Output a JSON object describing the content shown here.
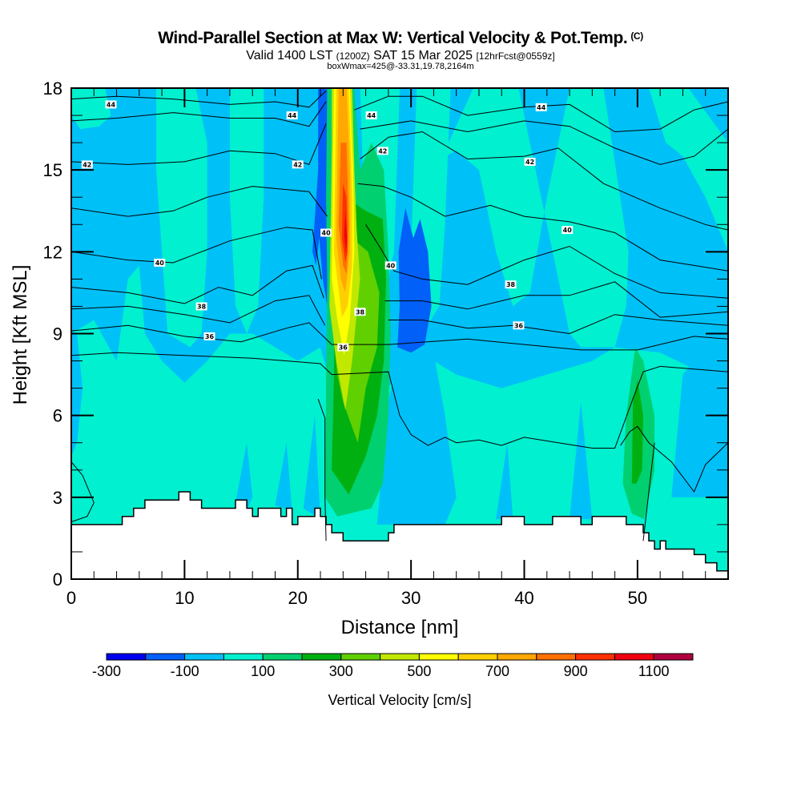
{
  "header": {
    "title": "Wind-Parallel Section at Max W: Vertical Velocity & Pot.Temp.",
    "copyright": "(C)",
    "valid_prefix": "Valid 1400 LST",
    "valid_utc": "(1200Z)",
    "valid_date": "SAT 15 Mar 2025",
    "forecast_info": "[12hrFcst@0559z]",
    "box_info": "boxWmax=425@-33.31,19.78,2164m"
  },
  "chart_data": {
    "type": "heatmap",
    "title": "Wind-Parallel Section at Max W: Vertical Velocity & Pot.Temp.",
    "xlabel": "Distance [nm]",
    "ylabel": "Height [Kft MSL]",
    "xlim": [
      0,
      58
    ],
    "ylim": [
      0,
      18
    ],
    "x_ticks": [
      "0",
      "10",
      "20",
      "30",
      "40",
      "50"
    ],
    "y_ticks": [
      "0",
      "3",
      "6",
      "9",
      "12",
      "15",
      "18"
    ],
    "x_tick_values": [
      0,
      10,
      20,
      30,
      40,
      50
    ],
    "y_tick_values": [
      0,
      3,
      6,
      9,
      12,
      15,
      18
    ],
    "grid": false,
    "background_level_cm_s": 0,
    "colorbar": {
      "title": "Vertical Velocity [cm/s]",
      "placement": "bottom",
      "bounds": [
        -300,
        -200,
        -100,
        0,
        100,
        200,
        300,
        400,
        500,
        600,
        700,
        800,
        900,
        1000,
        1100,
        1200
      ],
      "tick_labels": [
        "-300",
        "-100",
        "100",
        "300",
        "500",
        "700",
        "900",
        "1100"
      ],
      "tick_values": [
        -300,
        -100,
        100,
        300,
        500,
        700,
        900,
        1100
      ],
      "colors": [
        "#0000f0",
        "#0060f8",
        "#00c0f8",
        "#00f0d0",
        "#00d070",
        "#00b010",
        "#60d000",
        "#c0e800",
        "#ffff00",
        "#ffd000",
        "#ffa800",
        "#ff7000",
        "#ff3000",
        "#f00010",
        "#b00040"
      ]
    },
    "velocity_regions": [
      {
        "name": "updraft-core",
        "x_range": [
          22.5,
          25.5
        ],
        "z_range": [
          7.5,
          18
        ],
        "max_cm_s": 1100
      },
      {
        "name": "updraft-lower",
        "x_range": [
          22,
          28.5
        ],
        "z_range": [
          2,
          9
        ],
        "max_cm_s": 500
      },
      {
        "name": "downdraft-east",
        "x_range": [
          29,
          32
        ],
        "z_range": [
          8.5,
          13.5
        ],
        "min_cm_s": -200
      },
      {
        "name": "downdraft-west",
        "x_range": [
          21.5,
          23
        ],
        "z_range": [
          9,
          18
        ],
        "min_cm_s": -200
      },
      {
        "name": "updraft-east",
        "x_range": [
          48.5,
          52
        ],
        "z_range": [
          2.5,
          8.5
        ],
        "max_cm_s": 300
      }
    ],
    "terrain_kft": {
      "x": [
        0,
        3,
        4.5,
        5.5,
        6.5,
        9.5,
        10.5,
        11.5,
        14.5,
        15.5,
        16,
        16.5,
        18,
        18.5,
        19,
        19.5,
        20,
        21.5,
        22,
        22.5,
        23,
        24,
        27.5,
        28,
        28.5,
        35,
        38,
        40,
        42.5,
        45,
        46,
        49,
        50.5,
        51,
        51.5,
        52,
        52.5,
        53.5,
        55,
        56,
        57,
        58
      ],
      "z": [
        2.0,
        2.0,
        2.3,
        2.6,
        2.9,
        3.2,
        2.9,
        2.6,
        2.9,
        2.6,
        2.3,
        2.6,
        2.6,
        2.3,
        2.6,
        2.0,
        2.3,
        2.6,
        2.3,
        2.0,
        1.7,
        1.4,
        1.4,
        1.7,
        2.0,
        2.0,
        2.3,
        2.0,
        2.3,
        2.0,
        2.3,
        2.0,
        1.7,
        1.4,
        1.1,
        1.4,
        1.1,
        1.1,
        0.9,
        0.6,
        0.3,
        0.3
      ]
    },
    "theta_contours": {
      "units": "C (pot. temp. label)",
      "labels": [
        {
          "text": "44",
          "x": 3.5,
          "z": 17.4
        },
        {
          "text": "44",
          "x": 19.5,
          "z": 17.0
        },
        {
          "text": "44",
          "x": 26.5,
          "z": 17.0
        },
        {
          "text": "44",
          "x": 41.5,
          "z": 17.3
        },
        {
          "text": "42",
          "x": 1.4,
          "z": 15.2
        },
        {
          "text": "42",
          "x": 20.0,
          "z": 15.2
        },
        {
          "text": "42",
          "x": 27.5,
          "z": 15.7
        },
        {
          "text": "42",
          "x": 40.5,
          "z": 15.3
        },
        {
          "text": "40",
          "x": 7.8,
          "z": 11.6
        },
        {
          "text": "40",
          "x": 22.5,
          "z": 12.7
        },
        {
          "text": "40",
          "x": 28.2,
          "z": 11.5
        },
        {
          "text": "40",
          "x": 43.8,
          "z": 12.8
        },
        {
          "text": "38",
          "x": 11.5,
          "z": 10.0
        },
        {
          "text": "38",
          "x": 25.5,
          "z": 9.8
        },
        {
          "text": "38",
          "x": 38.8,
          "z": 10.8
        },
        {
          "text": "36",
          "x": 12.2,
          "z": 8.9
        },
        {
          "text": "36",
          "x": 24.0,
          "z": 8.5
        },
        {
          "text": "36",
          "x": 39.5,
          "z": 9.3
        }
      ]
    }
  }
}
